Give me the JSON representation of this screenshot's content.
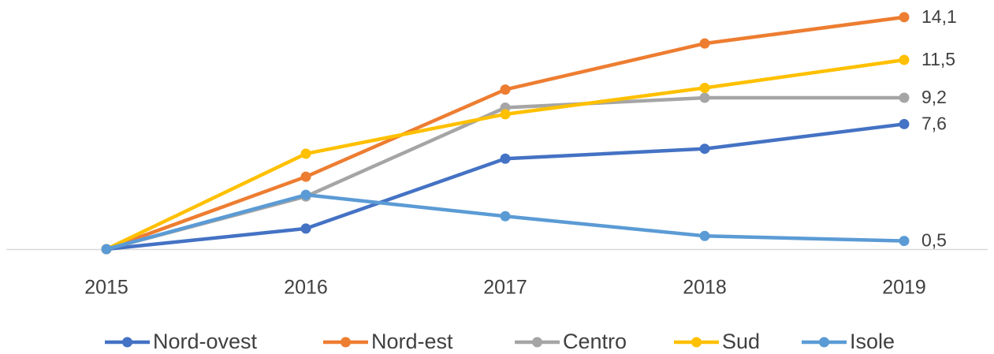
{
  "chart_data": {
    "type": "line",
    "categories": [
      "2015",
      "2016",
      "2017",
      "2018",
      "2019"
    ],
    "ylim": [
      0,
      15
    ],
    "series": [
      {
        "name": "Nord-ovest",
        "color": "#4472c4",
        "values": [
          0,
          1.25,
          5.5,
          6.1,
          7.6
        ],
        "value_labels": [
          null,
          null,
          null,
          null,
          "7,6"
        ]
      },
      {
        "name": "Nord-est",
        "color": "#ed7d31",
        "values": [
          0,
          4.4,
          9.7,
          12.5,
          14.1
        ],
        "value_labels": [
          null,
          null,
          null,
          null,
          "14,1"
        ]
      },
      {
        "name": "Centro",
        "color": "#a5a5a5",
        "values": [
          0,
          3.2,
          8.6,
          9.2,
          9.2
        ],
        "value_labels": [
          null,
          null,
          null,
          null,
          "9,2"
        ]
      },
      {
        "name": "Sud",
        "color": "#ffc000",
        "values": [
          0,
          5.8,
          8.2,
          9.8,
          11.5
        ],
        "value_labels": [
          null,
          null,
          null,
          null,
          "11,5"
        ]
      },
      {
        "name": "Isole",
        "color": "#5b9bd5",
        "values": [
          0,
          3.3,
          2.0,
          0.8,
          0.5
        ],
        "value_labels": [
          null,
          null,
          null,
          null,
          "0,5"
        ]
      }
    ],
    "legend": "bottom"
  }
}
